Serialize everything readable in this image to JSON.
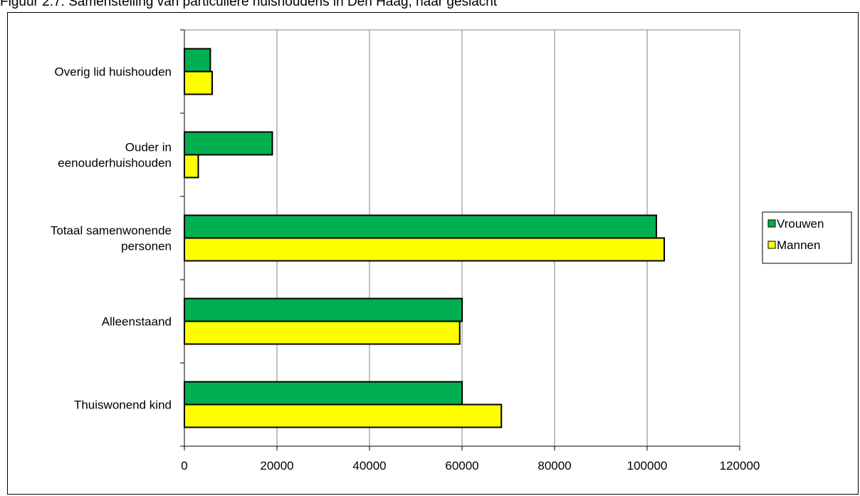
{
  "caption": "Figuur 2.7: Samenstelling van particuliere huishoudens in Den Haag, naar geslacht",
  "chart_data": {
    "type": "bar",
    "orientation": "horizontal",
    "categories": [
      "Overig lid huishouden",
      "Ouder in\neenouderhuishouden",
      "Totaal samenwonende\npersonen",
      "Alleenstaand",
      "Thuiswonend kind"
    ],
    "series": [
      {
        "name": "Vrouwen",
        "color": "#00b050",
        "values": [
          5600,
          19000,
          102000,
          60000,
          60000
        ]
      },
      {
        "name": "Mannen",
        "color": "#ffff00",
        "values": [
          6000,
          3000,
          103700,
          59500,
          68500
        ]
      }
    ],
    "xlim": [
      0,
      120000
    ],
    "xticks": [
      "0",
      "20000",
      "40000",
      "60000",
      "80000",
      "100000",
      "120000"
    ],
    "grid": "vertical",
    "legend": "right"
  }
}
